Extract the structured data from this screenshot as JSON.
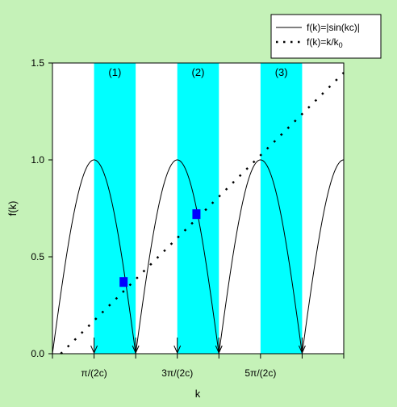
{
  "colors": {
    "background": "#c5f2b8",
    "plot_area": "#ffffff",
    "band": "#00ffff",
    "marker": "#0000ff",
    "line": "#000000"
  },
  "chart_data": {
    "type": "line",
    "xlabel": "k",
    "ylabel": "f(k)",
    "xlim_units_of_pi_over_2c": [
      0,
      7
    ],
    "ylim": [
      0,
      1.5
    ],
    "yticks": [
      {
        "value": 0.0,
        "label": "0.0"
      },
      {
        "value": 0.5,
        "label": "0.5"
      },
      {
        "value": 1.0,
        "label": "1.0"
      },
      {
        "value": 1.5,
        "label": "1.5"
      }
    ],
    "xticks": [
      {
        "value": 1,
        "label": "π/(2c)"
      },
      {
        "value": 3,
        "label": "3π/(2c)"
      },
      {
        "value": 5,
        "label": "5π/(2c)"
      }
    ],
    "bands": [
      {
        "label": "(1)",
        "from": 1,
        "to": 2
      },
      {
        "label": "(2)",
        "from": 3,
        "to": 4
      },
      {
        "label": "(3)",
        "from": 5,
        "to": 6
      }
    ],
    "arrows_at": [
      1,
      2,
      3,
      4,
      6
    ],
    "markers": [
      {
        "x": 1.71,
        "y": 0.37
      },
      {
        "x": 3.46,
        "y": 0.72
      }
    ],
    "series": [
      {
        "name": "f(k)=|sin(kc)|",
        "style": "solid",
        "function": "abs_sin",
        "period_units": 2
      },
      {
        "name": "f(k)=k/k",
        "name_subscript": "0",
        "style": "dotted",
        "function": "linear",
        "x": [
          0.2,
          7
        ],
        "y": [
          0.0,
          1.45
        ]
      }
    ],
    "grid": false,
    "legend_position": "top-right"
  }
}
